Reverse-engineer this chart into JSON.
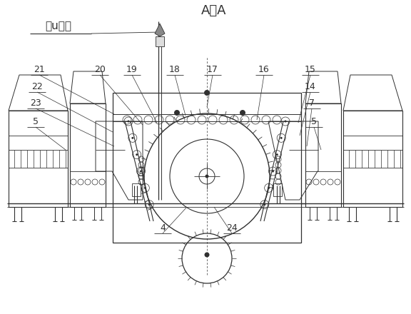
{
  "title": "A－A",
  "subtitle": "修u井机",
  "bg_color": "#ffffff",
  "line_color": "#303030",
  "lw": 0.7,
  "fig_w": 5.76,
  "fig_h": 4.4,
  "dpi": 100
}
